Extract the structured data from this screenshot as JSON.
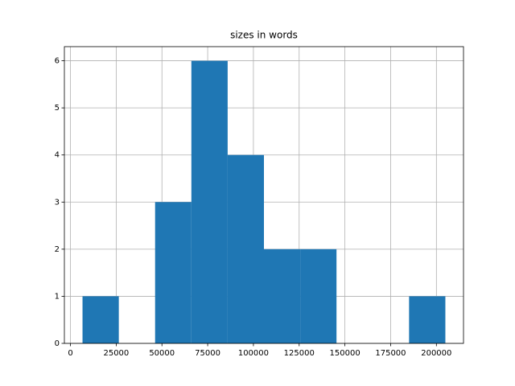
{
  "chart_data": {
    "type": "histogram",
    "title": "sizes in words",
    "bins": [
      6600,
      26430,
      46260,
      66090,
      85920,
      105750,
      125580,
      145410,
      165240,
      185070,
      204900
    ],
    "values": [
      1,
      0,
      3,
      6,
      4,
      2,
      2,
      0,
      0,
      1
    ],
    "color": "#1f77b4",
    "xlim": [
      -3315,
      214815
    ],
    "xticks": [
      0,
      25000,
      50000,
      75000,
      100000,
      125000,
      150000,
      175000,
      200000
    ],
    "ylim": [
      0,
      6.3
    ],
    "yticks": [
      0,
      1,
      2,
      3,
      4,
      5,
      6
    ],
    "grid": true
  }
}
